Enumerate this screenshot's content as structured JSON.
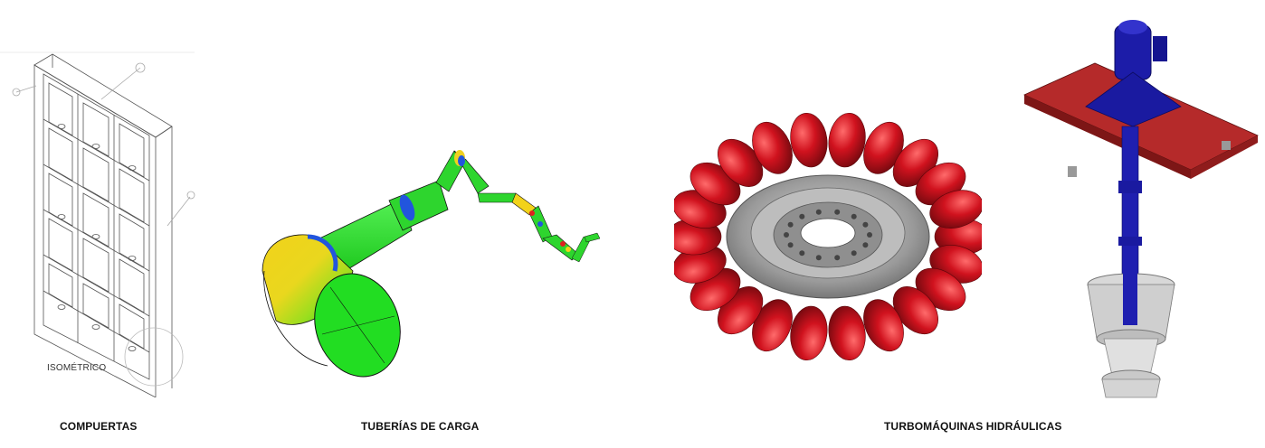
{
  "captions": {
    "gates": "COMPUERTAS",
    "penstocks": "TUBERÍAS DE CARGA",
    "turbomachines": "TURBOMÁQUINAS HIDRÁULICAS"
  },
  "drawing": {
    "view_label": "ISOMÉTRICO"
  },
  "colors": {
    "background": "#ffffff",
    "pelton_runner": "#c8101c",
    "pump_shaft": "#1a1aa0",
    "pump_plate": "#a82424",
    "pipe_green": "#22dd22",
    "pipe_yellow": "#f2d21a",
    "pipe_red": "#e02020",
    "pipe_blue": "#2255dd",
    "hub_grey": "#9a9a9a"
  }
}
